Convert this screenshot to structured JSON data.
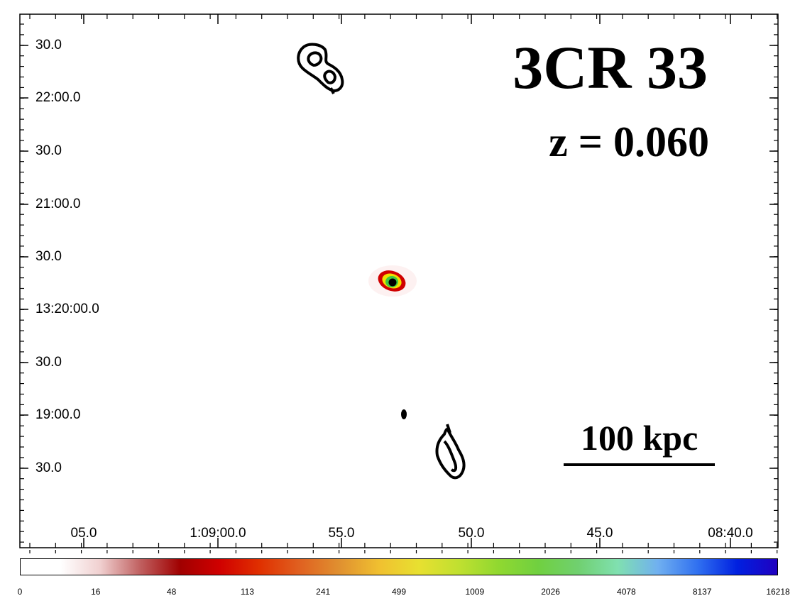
{
  "title": "3CR 33",
  "redshift": "z = 0.060",
  "scale_bar_label": "100 kpc",
  "y_axis": {
    "ticks": [
      "30.0",
      "22:00.0",
      "30.0",
      "21:00.0",
      "30.0",
      "13:20:00.0",
      "30.0",
      "19:00.0",
      "30.0"
    ]
  },
  "x_axis": {
    "ticks": [
      "05.0",
      "1:09:00.0",
      "55.0",
      "50.0",
      "45.0",
      "08:40.0"
    ]
  },
  "colorbar": {
    "labels": [
      "0",
      "16",
      "48",
      "113",
      "241",
      "499",
      "1009",
      "2026",
      "4078",
      "8137",
      "16218"
    ],
    "colors": [
      "#ffffff",
      "#ffffff",
      "#f0d0d0",
      "#c06060",
      "#a00000",
      "#d00000",
      "#e03000",
      "#e06020",
      "#e09030",
      "#f0c030",
      "#e8e030",
      "#c0e030",
      "#90d830",
      "#70d040",
      "#70d070",
      "#80e0b0",
      "#70b0f0",
      "#3070f0",
      "#0020e0",
      "#2000c0"
    ]
  },
  "colors": {
    "contour": "#000000",
    "core_center": "#000000",
    "core_inner": "#40c840",
    "core_mid": "#f0e000",
    "core_outer": "#d00000"
  }
}
